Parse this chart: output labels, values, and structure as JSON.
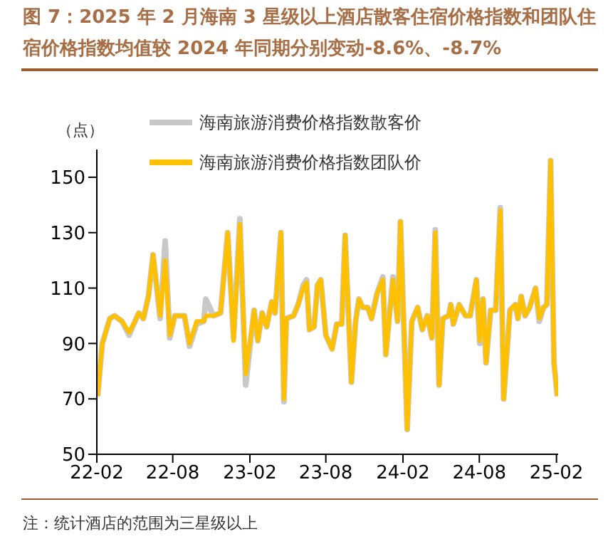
{
  "chart_data": {
    "type": "line",
    "title": "图 7：2025 年 2 月海南 3 星级以上酒店散客住宿价格指数和团队住宿价格指数均值较 2024 年同期分别变动-8.6%、-8.7%",
    "ylabel": "（点）",
    "annotations": [
      "注：统计酒店的范围为三星级以上"
    ],
    "x": [
      "2022-02-03",
      "2022-02-14",
      "2022-03-04",
      "2022-03-15",
      "2022-04-02",
      "2022-04-19",
      "2022-05-03",
      "2022-05-12",
      "2022-05-23",
      "2022-06-04",
      "2022-06-15",
      "2022-07-02",
      "2022-07-14",
      "2022-07-25",
      "2022-08-06",
      "2022-08-29",
      "2022-09-10",
      "2022-09-27",
      "2022-10-14",
      "2022-10-19",
      "2022-11-06",
      "2022-11-23",
      "2022-12-10",
      "2022-12-24",
      "2023-01-08",
      "2023-01-22",
      "2023-02-11",
      "2023-02-20",
      "2023-03-02",
      "2023-03-13",
      "2023-03-25",
      "2023-04-02",
      "2023-04-16",
      "2023-04-23",
      "2023-04-29",
      "2023-05-16",
      "2023-05-27",
      "2023-06-08",
      "2023-06-16",
      "2023-06-23",
      "2023-07-04",
      "2023-07-12",
      "2023-07-20",
      "2023-08-01",
      "2023-08-16",
      "2023-08-27",
      "2023-09-08",
      "2023-09-16",
      "2023-10-01",
      "2023-10-11",
      "2023-10-19",
      "2023-10-28",
      "2023-11-09",
      "2023-11-18",
      "2023-12-01",
      "2023-12-15",
      "2023-12-22",
      "2024-01-08",
      "2024-01-19",
      "2024-01-26",
      "2024-02-11",
      "2024-02-22",
      "2024-03-07",
      "2024-03-18",
      "2024-03-30",
      "2024-04-10",
      "2024-04-18",
      "2024-04-27",
      "2024-05-06",
      "2024-05-20",
      "2024-05-25",
      "2024-05-31",
      "2024-06-14",
      "2024-06-29",
      "2024-07-10",
      "2024-07-25",
      "2024-08-02",
      "2024-08-10",
      "2024-08-17",
      "2024-08-28",
      "2024-09-09",
      "2024-09-20",
      "2024-09-28",
      "2024-10-13",
      "2024-10-26",
      "2024-11-01",
      "2024-11-09",
      "2024-11-18",
      "2024-11-29",
      "2024-12-13",
      "2024-12-22",
      "2025-01-01",
      "2025-01-09",
      "2025-01-18",
      "2025-01-26",
      "2025-02-03"
    ],
    "series": [
      {
        "name": "海南旅游消费价格指数散客价",
        "color": "#c8c8c8",
        "values": [
          71,
          90,
          99,
          100,
          98,
          93,
          98,
          101,
          99,
          107,
          122,
          99,
          127,
          92,
          100,
          100,
          89,
          97,
          98,
          106,
          100,
          101,
          130,
          92,
          135,
          75,
          102,
          91,
          101,
          96,
          105,
          101,
          130,
          69,
          99,
          100,
          104,
          111,
          113,
          95,
          96,
          111,
          113,
          93,
          88,
          97,
          97,
          129,
          76,
          98,
          106,
          103,
          103,
          99,
          108,
          114,
          86,
          114,
          98,
          134,
          59,
          98,
          103,
          95,
          100,
          92,
          131,
          75,
          99,
          100,
          104,
          97,
          104,
          100,
          100,
          113,
          90,
          106,
          83,
          102,
          102,
          139,
          70,
          102,
          104,
          99,
          107,
          100,
          103,
          110,
          98,
          103,
          104,
          156,
          83,
          71
        ]
      },
      {
        "name": "海南旅游消费价格指数团队价",
        "color": "#ffc000",
        "values": [
          71,
          90,
          99,
          100,
          98,
          94,
          98,
          101,
          99,
          107,
          122,
          100,
          120,
          93,
          100,
          100,
          90,
          98,
          98,
          100,
          100,
          101,
          130,
          91,
          133,
          79,
          102,
          91,
          101,
          96,
          105,
          101,
          130,
          70,
          99,
          100,
          104,
          110,
          112,
          95,
          96,
          111,
          113,
          93,
          88,
          97,
          97,
          129,
          76,
          98,
          106,
          103,
          103,
          99,
          108,
          113,
          86,
          113,
          98,
          134,
          59,
          98,
          103,
          95,
          100,
          92,
          130,
          75,
          99,
          100,
          104,
          97,
          104,
          100,
          100,
          113,
          91,
          106,
          83,
          102,
          102,
          138,
          70,
          102,
          104,
          99,
          107,
          100,
          103,
          110,
          99,
          103,
          104,
          156,
          83,
          71
        ]
      }
    ],
    "xlim": [
      "2022-02-01",
      "2025-02-05"
    ],
    "xticks": [
      {
        "value": "2022-02",
        "label": "22-02"
      },
      {
        "value": "2022-08",
        "label": "22-08"
      },
      {
        "value": "2023-02",
        "label": "23-02"
      },
      {
        "value": "2023-08",
        "label": "23-08"
      },
      {
        "value": "2024-02",
        "label": "24-02"
      },
      {
        "value": "2024-08",
        "label": "24-08"
      },
      {
        "value": "2025-02",
        "label": "25-02"
      }
    ],
    "ylim": [
      50,
      160
    ],
    "yticks": [
      50,
      70,
      90,
      110,
      130,
      150
    ],
    "grid": false,
    "legend": "top",
    "marker": "none",
    "line_style": "solid"
  }
}
